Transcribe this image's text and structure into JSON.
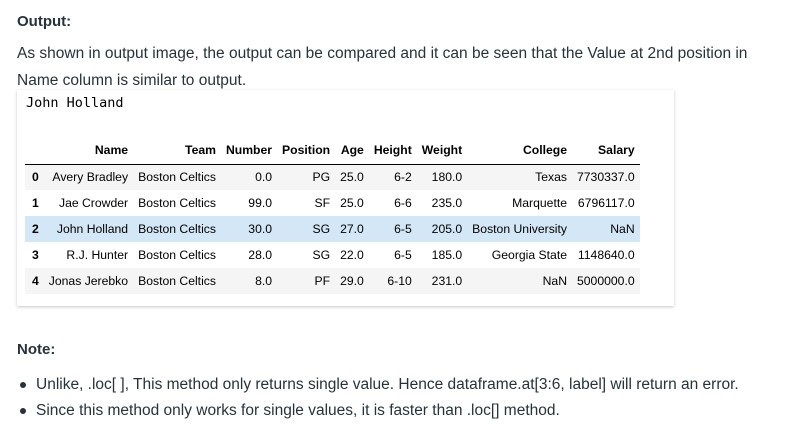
{
  "output_heading": "Output:",
  "output_paragraph": "As shown in output image, the output can be compared and it can be seen that the Value at 2nd position in Name column is similar to output.",
  "output_value": "John Holland",
  "table": {
    "columns": [
      "Name",
      "Team",
      "Number",
      "Position",
      "Age",
      "Height",
      "Weight",
      "College",
      "Salary"
    ],
    "rows": [
      {
        "index": "0",
        "cells": [
          "Avery Bradley",
          "Boston Celtics",
          "0.0",
          "PG",
          "25.0",
          "6-2",
          "180.0",
          "Texas",
          "7730337.0"
        ]
      },
      {
        "index": "1",
        "cells": [
          "Jae Crowder",
          "Boston Celtics",
          "99.0",
          "SF",
          "25.0",
          "6-6",
          "235.0",
          "Marquette",
          "6796117.0"
        ]
      },
      {
        "index": "2",
        "cells": [
          "John Holland",
          "Boston Celtics",
          "30.0",
          "SG",
          "27.0",
          "6-5",
          "205.0",
          "Boston University",
          "NaN"
        ]
      },
      {
        "index": "3",
        "cells": [
          "R.J. Hunter",
          "Boston Celtics",
          "28.0",
          "SG",
          "22.0",
          "6-5",
          "185.0",
          "Georgia State",
          "1148640.0"
        ]
      },
      {
        "index": "4",
        "cells": [
          "Jonas Jerebko",
          "Boston Celtics",
          "8.0",
          "PF",
          "29.0",
          "6-10",
          "231.0",
          "NaN",
          "5000000.0"
        ]
      }
    ],
    "highlighted_row": "2",
    "highlight_color": "#d4e7f7"
  },
  "note_heading": "Note:",
  "notes": [
    "Unlike, .loc[ ], This method only returns single value. Hence dataframe.at[3:6, label] will return an error.",
    "Since this method only works for single values, it is faster than .loc[] method."
  ]
}
